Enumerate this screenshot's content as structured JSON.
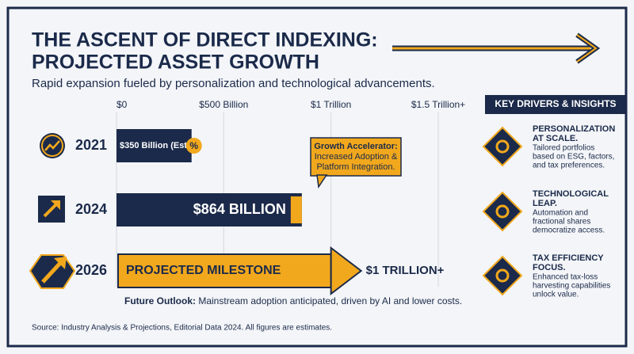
{
  "title": [
    "THE ASCENT OF DIRECT INDEXING:",
    "PROJECTED ASSET GROWTH"
  ],
  "subtitle": "Rapid expansion fueled by personalization and technological advancements.",
  "chart_data": {
    "type": "bar",
    "orientation": "horizontal",
    "categories": [
      "2021",
      "2024",
      "2026"
    ],
    "values": [
      350,
      864,
      1000
    ],
    "value_labels": [
      "$350 Billion (Est.)",
      "$864 BILLION",
      "$1 TRILLION+"
    ],
    "colors": [
      "#1b2a4a",
      "#1b2a4a",
      "#f2a81d"
    ],
    "badge": "%",
    "milestone_label": "PROJECTED MILESTONE",
    "xlim": [
      0,
      1500
    ],
    "xticks": [
      {
        "value": 0,
        "label": "$0"
      },
      {
        "value": 500,
        "label": "$500 Billion"
      },
      {
        "value": 1000,
        "label": "$1 Trillion"
      },
      {
        "value": 1500,
        "label": "$1.5 Trillion+"
      }
    ],
    "grid": true,
    "callout": [
      "Growth Accelerator:",
      "Increased Adoption &",
      "Platform Integration."
    ],
    "outlook": {
      "label": "Future Outlook:",
      "text": "Mainstream adoption anticipated, driven by AI and lower costs."
    }
  },
  "drivers": {
    "title": "KEY DRIVERS & INSIGHTS",
    "items": [
      {
        "heading": [
          "PERSONALIZATION",
          "AT SCALE."
        ],
        "text": [
          "Tailored portfolios",
          "based on ESG, factors,",
          "and tax preferences."
        ]
      },
      {
        "heading": [
          "TECHNOLOGICAL",
          "LEAP."
        ],
        "text": [
          "Automation and",
          "fractional shares",
          "democratize access."
        ]
      },
      {
        "heading": [
          "TAX EFFICIENCY",
          "FOCUS."
        ],
        "text": [
          "Enhanced tax-loss",
          "harvesting capabilities",
          "unlock value."
        ]
      }
    ]
  },
  "source": "Source: Industry Analysis & Projections, Editorial Data 2024. All figures are estimates."
}
